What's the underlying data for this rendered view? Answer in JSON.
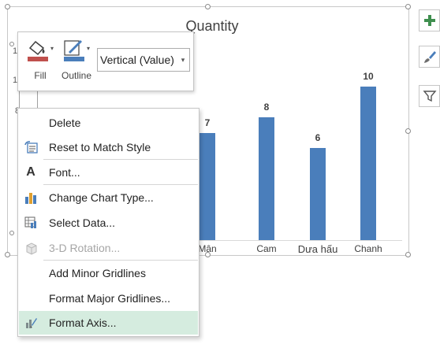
{
  "chart": {
    "title": "Quantity",
    "y_axis_ticks": [
      "12",
      "10",
      "8"
    ],
    "categories": [
      "Mận",
      "Cam",
      "Dưa hấu",
      "Chanh"
    ],
    "values": [
      7,
      8,
      6,
      10
    ],
    "value_labels": [
      "7",
      "8",
      "6",
      "10"
    ],
    "bar_color": "#4a7ebb"
  },
  "chart_data": {
    "type": "bar",
    "title": "Quantity",
    "categories": [
      "Mận",
      "Cam",
      "Dưa hấu",
      "Chanh"
    ],
    "values": [
      7,
      8,
      6,
      10
    ],
    "ylim": [
      0,
      12
    ]
  },
  "side_buttons": [
    {
      "icon": "plus-icon"
    },
    {
      "icon": "paintbrush-icon"
    },
    {
      "icon": "filter-icon"
    }
  ],
  "mini_toolbar": {
    "fill_label": "Fill",
    "outline_label": "Outline",
    "element_select": "Vertical (Value)",
    "fill_color": "#c0504d",
    "outline_color": "#4a7ebb"
  },
  "context_menu": {
    "items": [
      {
        "label": "Delete",
        "icon": "",
        "disabled": false
      },
      {
        "label": "Reset to Match Style",
        "icon": "reset-style-icon",
        "disabled": false
      },
      {
        "label": "Font...",
        "icon": "font-icon",
        "disabled": false
      },
      {
        "label": "Change Chart Type...",
        "icon": "chart-type-icon",
        "disabled": false
      },
      {
        "label": "Select Data...",
        "icon": "select-data-icon",
        "disabled": false
      },
      {
        "label": "3-D Rotation...",
        "icon": "3d-rotation-icon",
        "disabled": true
      },
      {
        "label": "Add Minor Gridlines",
        "icon": "",
        "disabled": false
      },
      {
        "label": "Format Major Gridlines...",
        "icon": "",
        "disabled": false
      },
      {
        "label": "Format Axis...",
        "icon": "format-axis-icon",
        "disabled": false,
        "highlighted": true
      }
    ]
  }
}
